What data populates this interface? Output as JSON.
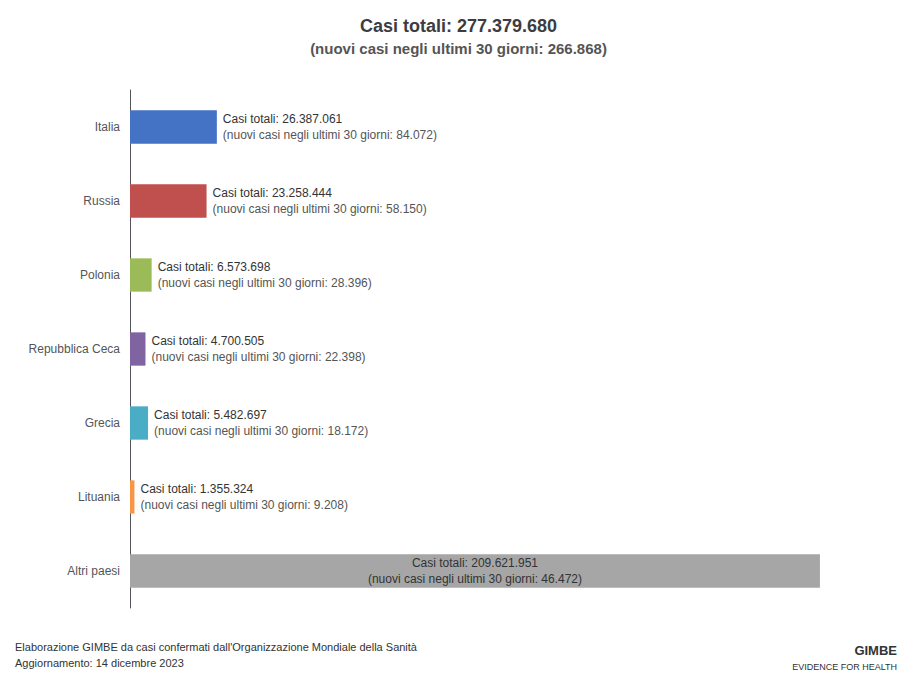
{
  "chart_data": {
    "type": "bar",
    "orientation": "horizontal",
    "title": "Casi totali: 277.379.680",
    "subtitle": "(nuovi casi negli ultimi 30 giorni: 266.868)",
    "categories": [
      "Italia",
      "Russia",
      "Polonia",
      "Repubblica Ceca",
      "Grecia",
      "Lituania",
      "Altri paesi"
    ],
    "values": [
      26387061,
      23258444,
      6573698,
      4700505,
      5482697,
      1355324,
      209621951
    ],
    "colors": [
      "#4472C4",
      "#C0504D",
      "#9BBB59",
      "#8064A2",
      "#4BACC6",
      "#F79646",
      "#A6A6A6"
    ],
    "data_labels": true,
    "value_labels": [
      "Casi totali: 26.387.061",
      "Casi totali: 23.258.444",
      "Casi totali: 6.573.698",
      "Casi totali: 4.700.505",
      "Casi totali: 5.482.697",
      "Casi totali: 1.355.324",
      "Casi totali: 209.621.951"
    ],
    "secondary_labels": [
      "(nuovi casi negli ultimi 30 giorni: 84.072)",
      "(nuovi casi negli ultimi 30 giorni: 58.150)",
      "(nuovi casi negli ultimi 30 giorni: 28.396)",
      "(nuovi casi negli ultimi 30 giorni: 22.398)",
      "(nuovi casi negli ultimi 30 giorni: 18.172)",
      "(nuovi casi negli ultimi 30 giorni: 9.208)",
      "(nuovi casi negli ultimi 30 giorni: 46.472)"
    ],
    "xlim": [
      0,
      230000000
    ],
    "tick_labels": "y",
    "grid": false,
    "annotations": [
      "Elaborazione GIMBE da casi confermati dall'Organizzazione Mondiale della Sanità",
      "Aggiornamento: 14 dicembre 2023",
      "GIMBE",
      "EVIDENCE FOR HEALTH"
    ]
  }
}
